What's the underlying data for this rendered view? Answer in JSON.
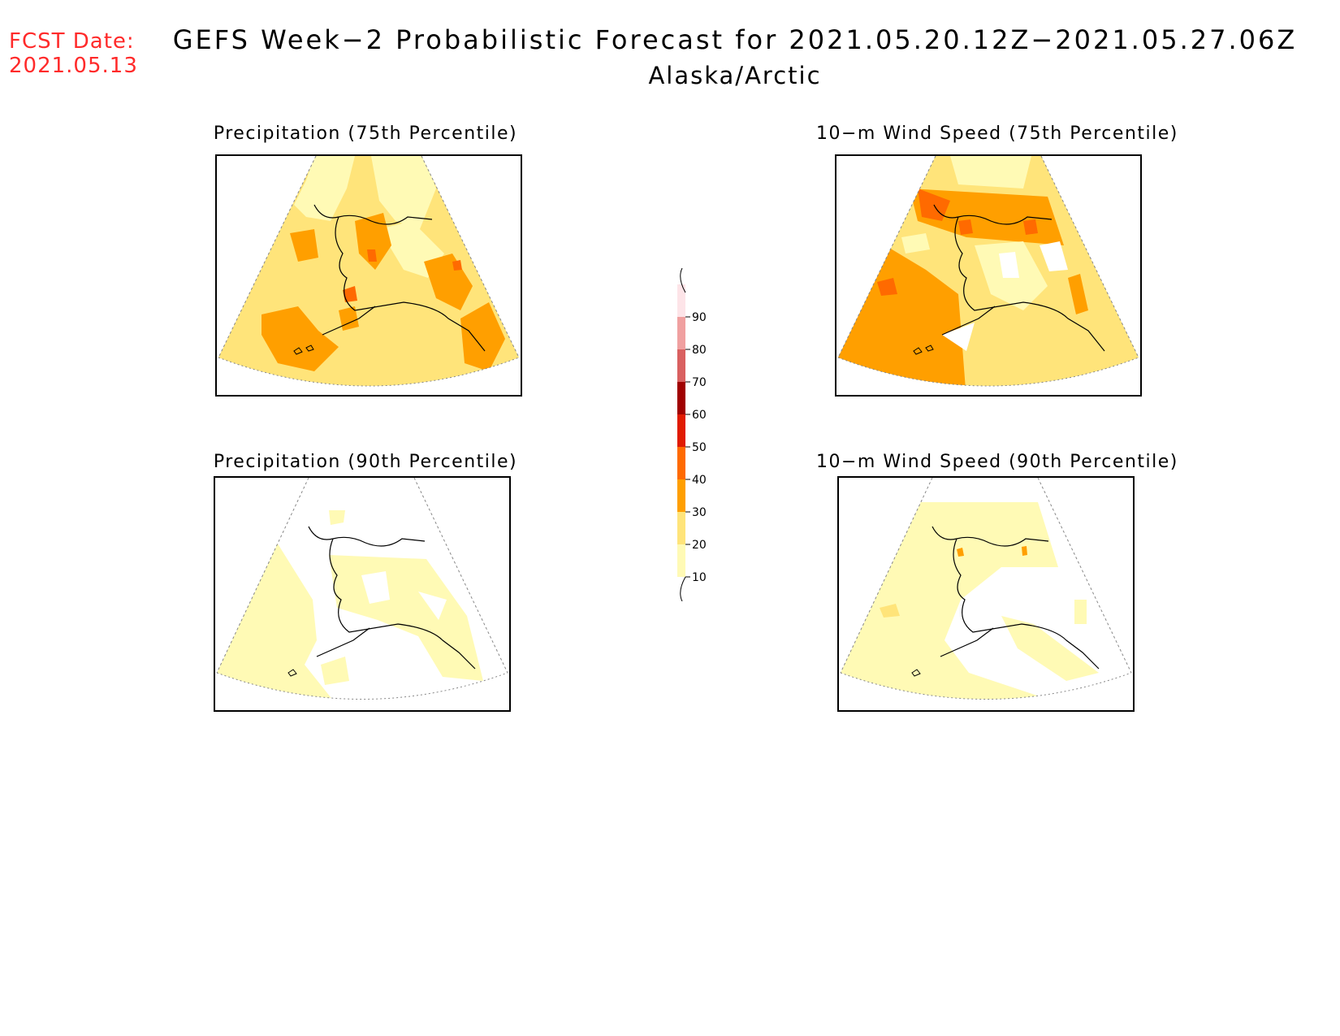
{
  "header": {
    "fcst_label": "FCST Date:",
    "fcst_date": "2021.05.13",
    "title": "GEFS Week−2 Probabilistic Forecast for 2021.05.20.12Z−2021.05.27.06Z",
    "region": "Alaska/Arctic"
  },
  "panels": [
    {
      "id": "precip75",
      "title": "Precipitation (75th Percentile)"
    },
    {
      "id": "wind75",
      "title": "10−m Wind Speed (75th Percentile)"
    },
    {
      "id": "precip90",
      "title": "Precipitation (90th Percentile)"
    },
    {
      "id": "wind90",
      "title": "10−m Wind Speed (90th Percentile)"
    }
  ],
  "colorbar": {
    "levels": [
      "10",
      "20",
      "30",
      "40",
      "50",
      "60",
      "70",
      "80",
      "90"
    ],
    "colors": [
      "#fffab5",
      "#ffe47a",
      "#ff9f00",
      "#ff6a00",
      "#e01b00",
      "#a00000",
      "#d96060",
      "#f0a0a0",
      "#fde4e8"
    ]
  }
}
